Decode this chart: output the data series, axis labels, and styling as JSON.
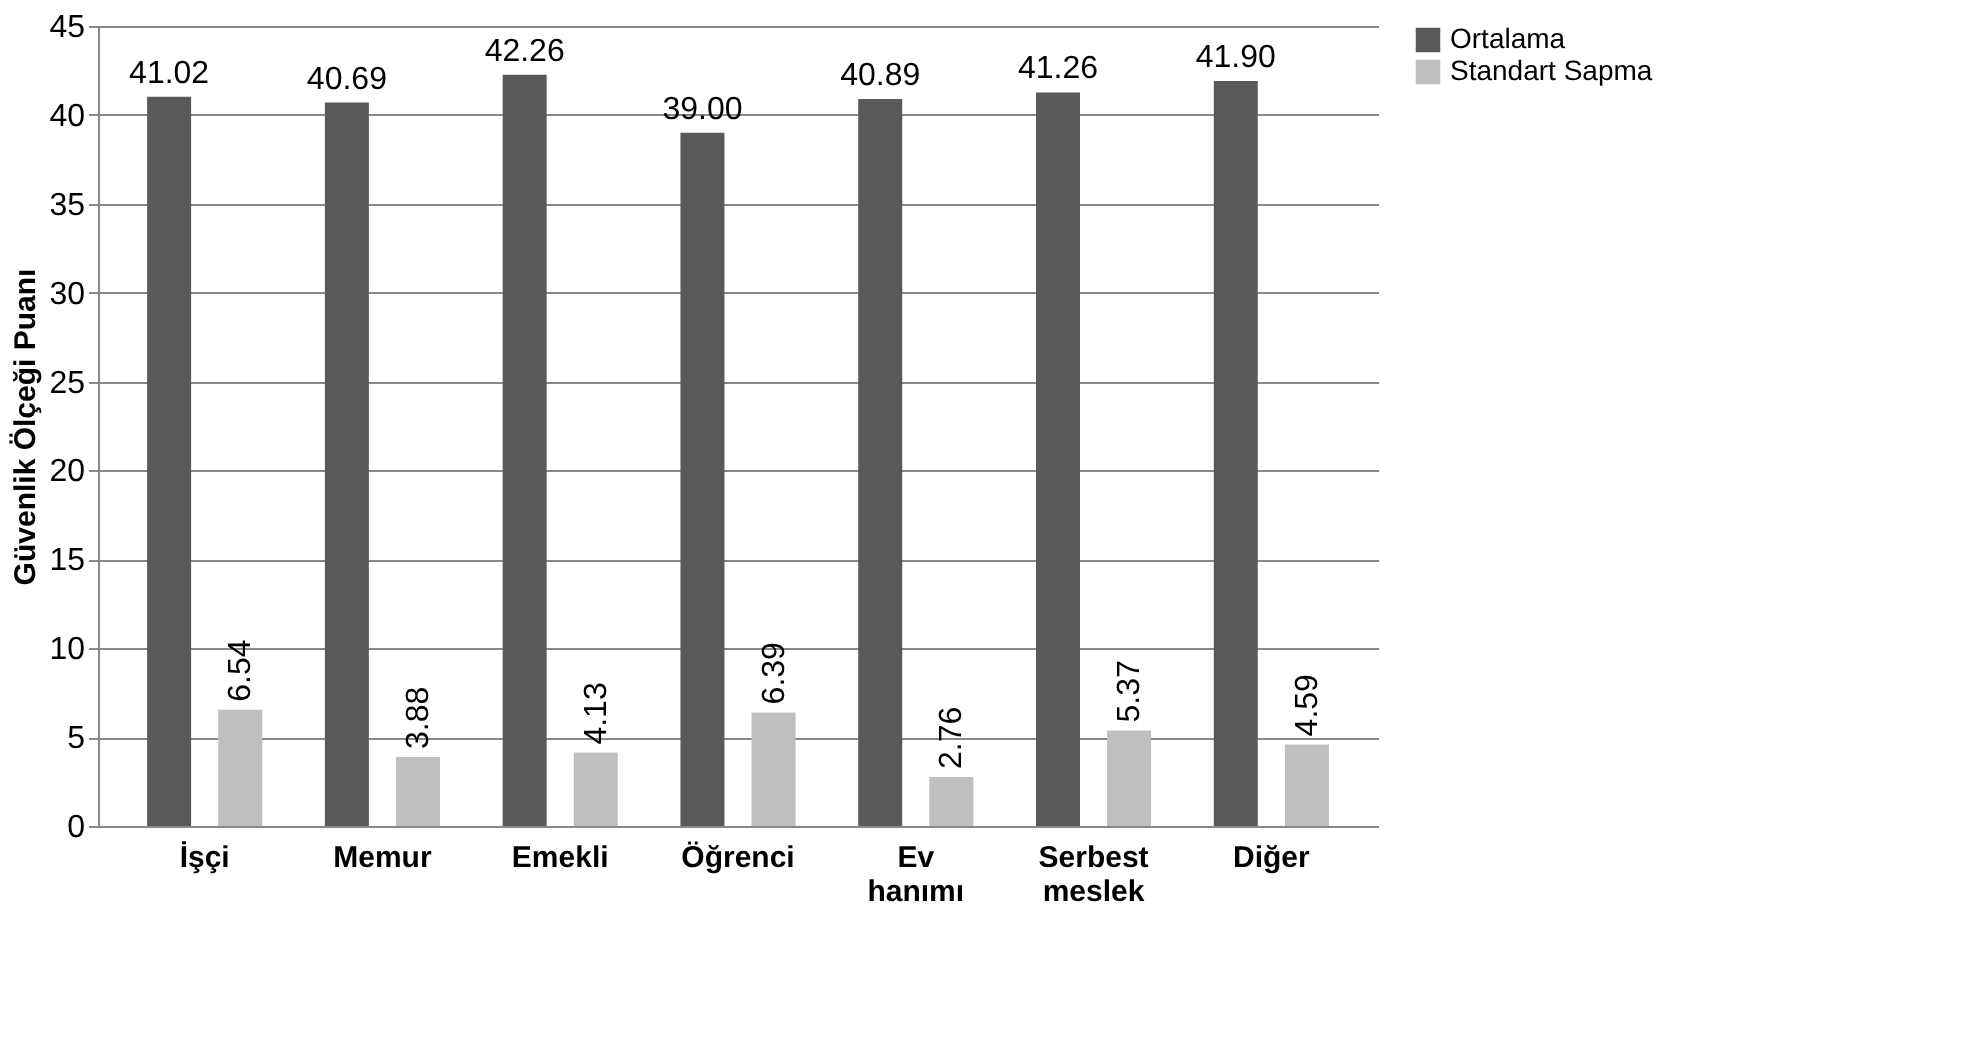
{
  "chart_data": {
    "type": "bar",
    "ylabel": "Güvenlik Ölçeği Puanı",
    "categories": [
      "İşçi",
      "Memur",
      "Emekli",
      "Öğrenci",
      "Ev hanımı",
      "Serbest meslek",
      "Diğer"
    ],
    "series": [
      {
        "name": "Ortalama",
        "color": "#595959",
        "values": [
          41.02,
          40.69,
          42.26,
          39.0,
          40.89,
          41.26,
          41.9
        ],
        "value_labels": [
          "41.02",
          "40.69",
          "42.26",
          "39.00",
          "40.89",
          "41.26",
          "41.90"
        ]
      },
      {
        "name": "Standart Sapma",
        "color": "#bfbfbf",
        "values": [
          6.54,
          3.88,
          4.13,
          6.39,
          2.76,
          5.37,
          4.59
        ],
        "value_labels": [
          "6.54",
          "3.88",
          "4.13",
          "6.39",
          "2.76",
          "5.37",
          "4.59"
        ]
      }
    ],
    "ylim": [
      0,
      45
    ],
    "yticks": [
      0,
      5,
      10,
      15,
      20,
      25,
      30,
      35,
      40,
      45
    ],
    "grid": "y",
    "legend": "right"
  }
}
